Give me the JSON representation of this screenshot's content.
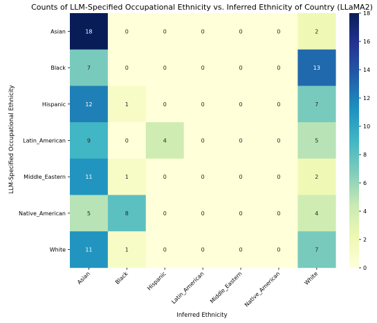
{
  "chart_data": {
    "type": "heatmap",
    "title": "Counts of LLM-Specified Occupational Ethnicity vs. Inferred Ethnicity of Country (LLaMA2)",
    "xlabel": "Inferred Ethnicity",
    "ylabel": "LLM-Specified Occupational Ethnicity",
    "x_categories": [
      "Asian",
      "Black",
      "Hispanic",
      "Latin_American",
      "Middle_Eastern",
      "Native_American",
      "White"
    ],
    "y_categories": [
      "Asian",
      "Black",
      "Hispanic",
      "Latin_American",
      "Middle_Eastern",
      "Native_American",
      "White"
    ],
    "values": [
      [
        18,
        0,
        0,
        0,
        0,
        0,
        2
      ],
      [
        7,
        0,
        0,
        0,
        0,
        0,
        13
      ],
      [
        12,
        1,
        0,
        0,
        0,
        0,
        7
      ],
      [
        9,
        0,
        4,
        0,
        0,
        0,
        5
      ],
      [
        11,
        1,
        0,
        0,
        0,
        0,
        2
      ],
      [
        5,
        8,
        0,
        0,
        0,
        0,
        4
      ],
      [
        11,
        1,
        0,
        0,
        0,
        0,
        7
      ]
    ],
    "colorbar": {
      "min": 0,
      "max": 18,
      "ticks": [
        0,
        2,
        4,
        6,
        8,
        10,
        12,
        14,
        16,
        18
      ],
      "colormap": "YlGnBu"
    }
  }
}
